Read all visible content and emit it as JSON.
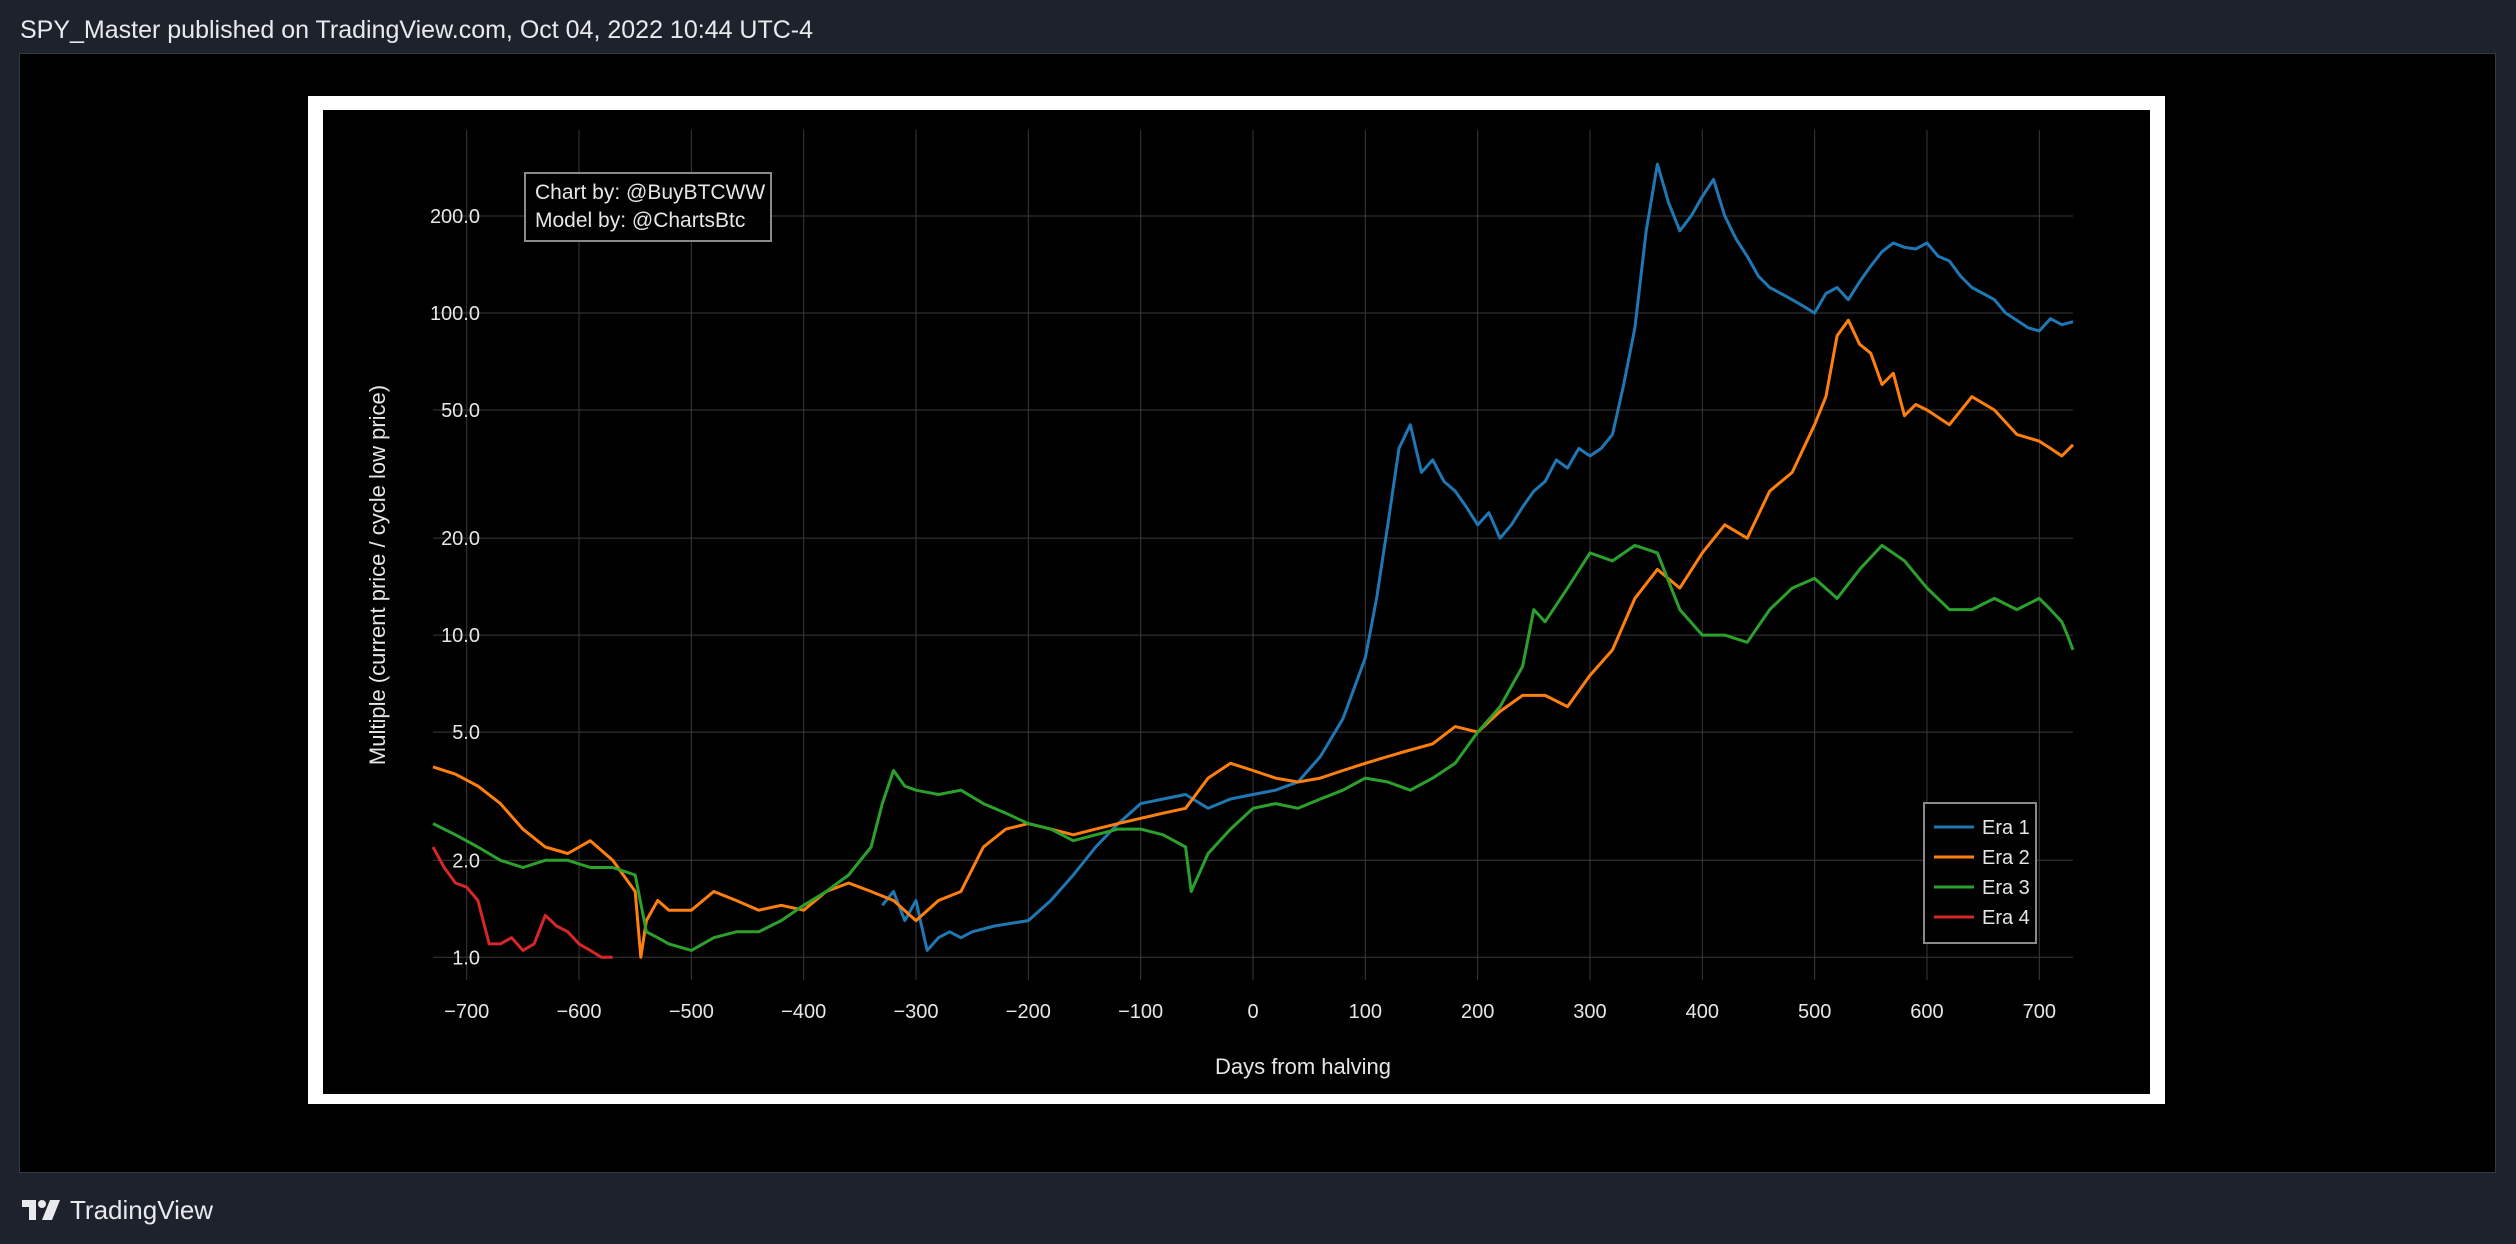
{
  "header": {
    "publish_line": "SPY_Master published on TradingView.com, Oct 04, 2022 10:44 UTC-4"
  },
  "footer": {
    "brand": "TradingView",
    "logo_icon": "tradingview-logo-icon"
  },
  "chart_data": {
    "type": "line",
    "title": "",
    "credit_lines": [
      "Chart by: @BuyBTCWW",
      "Model by: @ChartsBtc"
    ],
    "xlabel": "Days from halving",
    "ylabel": "Multiple (current price / cycle low price)",
    "y_scale": "log",
    "xlim": [
      -730,
      730
    ],
    "ylim": [
      0.85,
      370
    ],
    "x_ticks": [
      -700,
      -600,
      -500,
      -400,
      -300,
      -200,
      -100,
      0,
      100,
      200,
      300,
      400,
      500,
      600,
      700
    ],
    "x_tick_labels": [
      "−700",
      "−600",
      "−500",
      "−400",
      "−300",
      "−200",
      "−100",
      "0",
      "100",
      "200",
      "300",
      "400",
      "500",
      "600",
      "700"
    ],
    "y_ticks": [
      1,
      2,
      5,
      10,
      20,
      50,
      100,
      200
    ],
    "y_tick_labels": [
      "1.0",
      "2.0",
      "5.0",
      "10.0",
      "20.0",
      "50.0",
      "100.0",
      "200.0"
    ],
    "grid": true,
    "legend_position": "lower-right",
    "series": [
      {
        "name": "Era 1",
        "color": "#1f77b4",
        "x": [
          -330,
          -320,
          -310,
          -300,
          -295,
          -290,
          -280,
          -270,
          -260,
          -250,
          -230,
          -200,
          -180,
          -160,
          -140,
          -120,
          -100,
          -80,
          -60,
          -40,
          -20,
          0,
          20,
          40,
          60,
          80,
          100,
          110,
          120,
          130,
          140,
          150,
          160,
          170,
          180,
          190,
          200,
          210,
          220,
          230,
          240,
          250,
          260,
          270,
          280,
          290,
          300,
          310,
          320,
          330,
          340,
          350,
          360,
          370,
          380,
          390,
          400,
          410,
          420,
          430,
          440,
          450,
          460,
          470,
          480,
          490,
          500,
          510,
          520,
          530,
          540,
          550,
          560,
          570,
          580,
          590,
          600,
          610,
          620,
          630,
          640,
          650,
          660,
          670,
          680,
          690,
          700,
          710,
          720,
          730
        ],
        "y": [
          1.45,
          1.6,
          1.3,
          1.5,
          1.25,
          1.05,
          1.15,
          1.2,
          1.15,
          1.2,
          1.25,
          1.3,
          1.5,
          1.8,
          2.2,
          2.6,
          3.0,
          3.1,
          3.2,
          2.9,
          3.1,
          3.2,
          3.3,
          3.5,
          4.2,
          5.5,
          8.5,
          13,
          22,
          38,
          45,
          32,
          35,
          30,
          28,
          25,
          22,
          24,
          20,
          22,
          25,
          28,
          30,
          35,
          33,
          38,
          36,
          38,
          42,
          60,
          90,
          180,
          290,
          220,
          180,
          200,
          230,
          260,
          200,
          170,
          150,
          130,
          120,
          115,
          110,
          105,
          100,
          115,
          120,
          110,
          125,
          140,
          155,
          165,
          160,
          158,
          165,
          150,
          145,
          130,
          120,
          115,
          110,
          100,
          95,
          90,
          88,
          96,
          92,
          94
        ]
      },
      {
        "name": "Era 2",
        "color": "#ff7f0e",
        "x": [
          -730,
          -710,
          -690,
          -670,
          -650,
          -630,
          -610,
          -590,
          -570,
          -550,
          -545,
          -540,
          -530,
          -520,
          -500,
          -480,
          -460,
          -440,
          -420,
          -400,
          -380,
          -360,
          -340,
          -320,
          -300,
          -280,
          -260,
          -240,
          -220,
          -200,
          -180,
          -160,
          -140,
          -120,
          -100,
          -80,
          -60,
          -40,
          -20,
          0,
          20,
          40,
          60,
          80,
          100,
          120,
          140,
          160,
          180,
          200,
          220,
          240,
          260,
          280,
          300,
          320,
          340,
          360,
          380,
          400,
          420,
          440,
          460,
          480,
          500,
          510,
          520,
          530,
          540,
          550,
          560,
          570,
          580,
          590,
          600,
          620,
          640,
          660,
          680,
          700,
          710,
          720,
          730
        ],
        "y": [
          3.9,
          3.7,
          3.4,
          3.0,
          2.5,
          2.2,
          2.1,
          2.3,
          2.0,
          1.6,
          1.0,
          1.3,
          1.5,
          1.4,
          1.4,
          1.6,
          1.5,
          1.4,
          1.45,
          1.4,
          1.6,
          1.7,
          1.6,
          1.5,
          1.3,
          1.5,
          1.6,
          2.2,
          2.5,
          2.6,
          2.5,
          2.4,
          2.5,
          2.6,
          2.7,
          2.8,
          2.9,
          3.6,
          4.0,
          3.8,
          3.6,
          3.5,
          3.6,
          3.8,
          4.0,
          4.2,
          4.4,
          4.6,
          5.2,
          5.0,
          5.8,
          6.5,
          6.5,
          6.0,
          7.5,
          9.0,
          13,
          16,
          14,
          18,
          22,
          20,
          28,
          32,
          45,
          55,
          85,
          95,
          80,
          75,
          60,
          65,
          48,
          52,
          50,
          45,
          55,
          50,
          42,
          40,
          38,
          36,
          39
        ]
      },
      {
        "name": "Era 3",
        "color": "#2ca02c",
        "x": [
          -730,
          -710,
          -690,
          -670,
          -650,
          -630,
          -610,
          -590,
          -570,
          -550,
          -540,
          -530,
          -520,
          -500,
          -480,
          -460,
          -440,
          -420,
          -400,
          -380,
          -360,
          -340,
          -330,
          -320,
          -310,
          -300,
          -280,
          -260,
          -240,
          -220,
          -200,
          -180,
          -160,
          -140,
          -120,
          -100,
          -80,
          -60,
          -55,
          -40,
          -20,
          0,
          20,
          40,
          60,
          80,
          100,
          120,
          140,
          160,
          180,
          200,
          220,
          240,
          250,
          260,
          280,
          300,
          320,
          340,
          360,
          380,
          400,
          420,
          440,
          460,
          480,
          500,
          520,
          540,
          560,
          580,
          600,
          620,
          640,
          660,
          680,
          700,
          710,
          720,
          725,
          730
        ],
        "y": [
          2.6,
          2.4,
          2.2,
          2.0,
          1.9,
          2.0,
          2.0,
          1.9,
          1.9,
          1.8,
          1.2,
          1.15,
          1.1,
          1.05,
          1.15,
          1.2,
          1.2,
          1.3,
          1.45,
          1.6,
          1.8,
          2.2,
          3.0,
          3.8,
          3.4,
          3.3,
          3.2,
          3.3,
          3.0,
          2.8,
          2.6,
          2.5,
          2.3,
          2.4,
          2.5,
          2.5,
          2.4,
          2.2,
          1.6,
          2.1,
          2.5,
          2.9,
          3.0,
          2.9,
          3.1,
          3.3,
          3.6,
          3.5,
          3.3,
          3.6,
          4.0,
          5.0,
          6.0,
          8.0,
          12,
          11,
          14,
          18,
          17,
          19,
          18,
          12,
          10,
          10,
          9.5,
          12,
          14,
          15,
          13,
          16,
          19,
          17,
          14,
          12,
          12,
          13,
          12,
          13,
          12,
          11,
          10,
          9
        ]
      },
      {
        "name": "Era 4",
        "color": "#d62728",
        "x": [
          -730,
          -720,
          -710,
          -700,
          -690,
          -680,
          -670,
          -660,
          -650,
          -640,
          -630,
          -620,
          -610,
          -600,
          -590,
          -580,
          -570
        ],
        "y": [
          2.2,
          1.9,
          1.7,
          1.65,
          1.5,
          1.1,
          1.1,
          1.15,
          1.05,
          1.1,
          1.35,
          1.25,
          1.2,
          1.1,
          1.05,
          1.0,
          1.0
        ]
      }
    ]
  }
}
